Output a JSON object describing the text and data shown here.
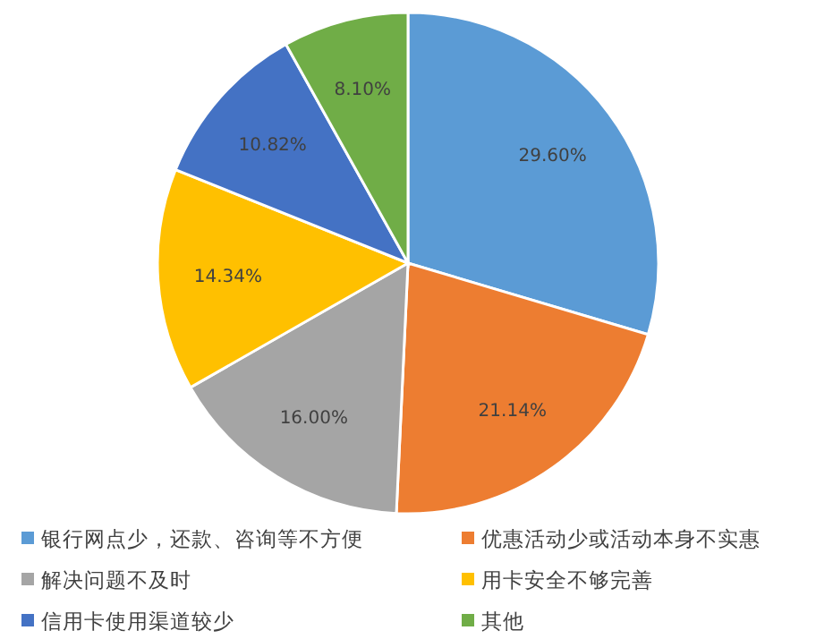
{
  "chart_data": {
    "type": "pie",
    "categories": [
      "银行网点少，还款、咨询等不方便",
      "优惠活动少或活动本身不实惠",
      "解决问题不及时",
      "用卡安全不够完善",
      "信用卡使用渠道较少",
      "其他"
    ],
    "values": [
      29.6,
      21.14,
      16.0,
      14.34,
      10.82,
      8.1
    ],
    "colors": [
      "#5b9bd5",
      "#ed7d31",
      "#a5a5a5",
      "#ffc000",
      "#4472c4",
      "#70ad47"
    ],
    "value_labels": [
      "29.60%",
      "21.14%",
      "16.00%",
      "14.34%",
      "10.82%",
      "8.10%"
    ],
    "legend": "bottom"
  }
}
